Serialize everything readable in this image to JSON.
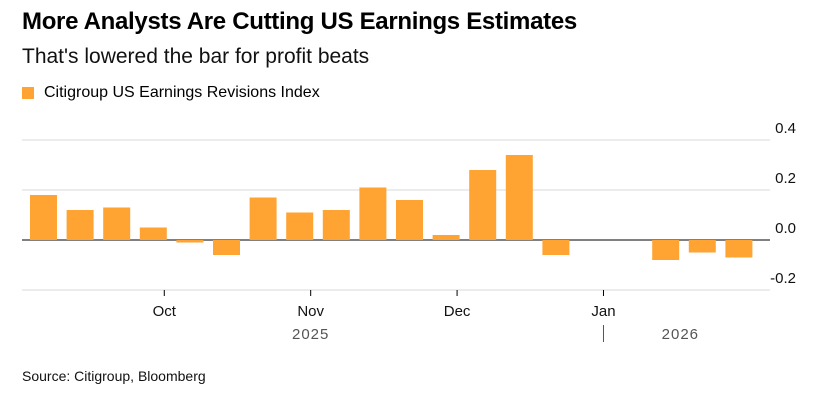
{
  "header": {
    "title": "More Analysts Are Cutting US Earnings Estimates",
    "subtitle": "That's lowered the bar for profit beats"
  },
  "legend": {
    "label": "Citigroup US Earnings Revisions Index",
    "color": "#ffa333"
  },
  "source": "Source: Citigroup, Bloomberg",
  "chart_data": {
    "type": "bar",
    "title": "More Analysts Are Cutting US Earnings Estimates",
    "subtitle": "That's lowered the bar for profit beats",
    "series": [
      {
        "name": "Citigroup US Earnings Revisions Index",
        "color": "#ffa333",
        "values": [
          0.18,
          0.12,
          0.13,
          0.05,
          -0.01,
          -0.06,
          0.17,
          0.11,
          0.12,
          0.21,
          0.16,
          0.02,
          0.28,
          0.34,
          -0.06,
          null,
          null,
          -0.08,
          -0.05,
          -0.07
        ]
      }
    ],
    "ylim": [
      -0.2,
      0.4
    ],
    "yticks": [
      0.4,
      0.2,
      0.0,
      -0.2
    ],
    "ytick_labels": [
      "0.4",
      "0.2",
      "0.0",
      "-0.2"
    ],
    "xticks": [
      {
        "label": "Oct",
        "index": 3.3
      },
      {
        "label": "Nov",
        "index": 7.3
      },
      {
        "label": "Dec",
        "index": 11.3
      },
      {
        "label": "Jan",
        "index": 15.3
      }
    ],
    "year_labels": [
      {
        "label": "2025",
        "index": 7.3
      },
      {
        "label": "2026",
        "index": 17.4
      }
    ],
    "year_separator_index": 15.3,
    "grid": true,
    "axis_side": "right"
  }
}
